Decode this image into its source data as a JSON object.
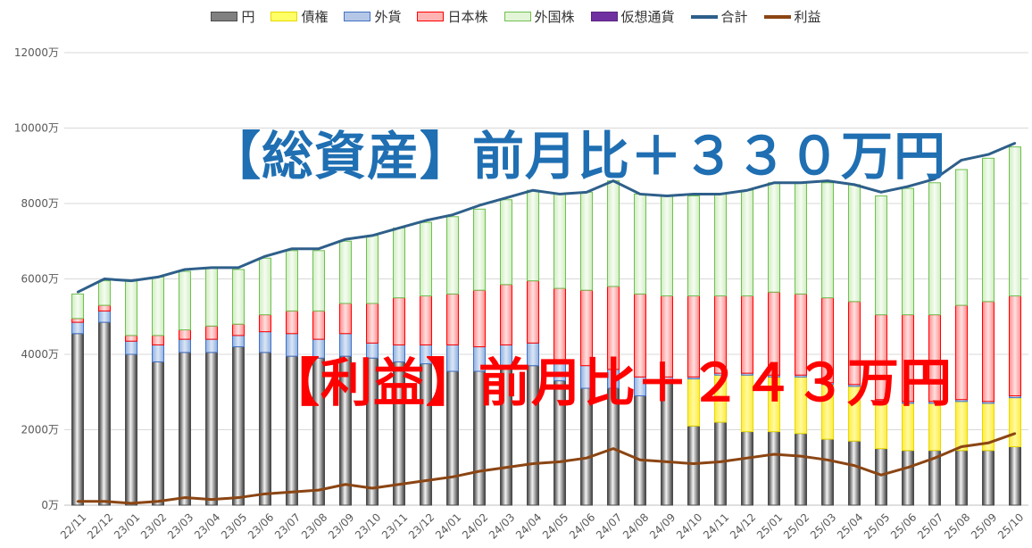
{
  "legend": [
    {
      "key": "yen",
      "label": "円",
      "color": "#808080",
      "kind": "bar"
    },
    {
      "key": "bond",
      "label": "債権",
      "color": "#ffff66",
      "kind": "bar"
    },
    {
      "key": "fx",
      "label": "外貨",
      "color": "#b4c7e7",
      "kind": "bar"
    },
    {
      "key": "jp",
      "label": "日本株",
      "color": "#ffb3b3",
      "kind": "bar"
    },
    {
      "key": "intl",
      "label": "外国株",
      "color": "#e2f5d6",
      "kind": "bar"
    },
    {
      "key": "crypto",
      "label": "仮想通貨",
      "color": "#7030a0",
      "kind": "bar"
    },
    {
      "key": "total",
      "label": "合計",
      "color": "#2e5f8a",
      "kind": "line"
    },
    {
      "key": "profit",
      "label": "利益",
      "color": "#8b4513",
      "kind": "line"
    }
  ],
  "headlines": {
    "total": "【総資産】前月比＋３３０万円",
    "profit": "【利益】前月比＋２４３万円"
  },
  "chart_data": {
    "type": "bar",
    "stacked": true,
    "ylim": [
      0,
      12000
    ],
    "yticks": [
      "0万",
      "2000万",
      "4000万",
      "6000万",
      "8000万",
      "10000万",
      "12000万"
    ],
    "categories": [
      "22/11",
      "22/12",
      "23/01",
      "23/02",
      "23/03",
      "23/04",
      "23/05",
      "23/06",
      "23/07",
      "23/08",
      "23/09",
      "23/10",
      "23/11",
      "23/12",
      "24/01",
      "24/02",
      "24/03",
      "24/04",
      "24/05",
      "24/06",
      "24/07",
      "24/08",
      "24/09",
      "24/10",
      "24/11",
      "24/12",
      "25/01",
      "25/02",
      "25/03",
      "25/04",
      "25/05",
      "25/06",
      "25/07",
      "25/08",
      "25/09",
      "25/10"
    ],
    "series": [
      {
        "name": "円",
        "key": "yen",
        "values": [
          4550,
          4850,
          4000,
          3800,
          4050,
          4050,
          4200,
          4050,
          3950,
          3900,
          3950,
          3900,
          3800,
          3750,
          3550,
          3550,
          3700,
          3700,
          3300,
          3100,
          3100,
          2900,
          3300,
          2100,
          2200,
          1950,
          1950,
          1900,
          1750,
          1700,
          1500,
          1450,
          1450,
          1450,
          1450,
          1550
        ]
      },
      {
        "name": "債権",
        "key": "bond",
        "values": [
          0,
          0,
          0,
          0,
          0,
          0,
          0,
          0,
          0,
          0,
          0,
          0,
          0,
          0,
          0,
          0,
          0,
          0,
          0,
          0,
          0,
          0,
          0,
          1250,
          1250,
          1500,
          1450,
          1500,
          1450,
          1450,
          1250,
          1250,
          1250,
          1300,
          1250,
          1300
        ]
      },
      {
        "name": "外貨",
        "key": "fx",
        "values": [
          300,
          300,
          350,
          450,
          350,
          350,
          300,
          550,
          600,
          500,
          600,
          400,
          450,
          500,
          700,
          650,
          550,
          600,
          500,
          600,
          500,
          500,
          100,
          50,
          50,
          50,
          50,
          50,
          50,
          50,
          50,
          50,
          50,
          50,
          50,
          50
        ]
      },
      {
        "name": "日本株",
        "key": "jp",
        "values": [
          100,
          150,
          150,
          250,
          250,
          350,
          300,
          450,
          600,
          750,
          800,
          1050,
          1250,
          1300,
          1350,
          1500,
          1600,
          1650,
          1950,
          2000,
          2200,
          2200,
          2150,
          2150,
          2050,
          2050,
          2200,
          2150,
          2250,
          2200,
          2250,
          2300,
          2300,
          2500,
          2650,
          2650
        ]
      },
      {
        "name": "外国株",
        "key": "intl",
        "values": [
          650,
          650,
          1450,
          1550,
          1550,
          1550,
          1450,
          1500,
          1600,
          1600,
          1650,
          1800,
          1850,
          1950,
          2050,
          2150,
          2250,
          2400,
          2500,
          2600,
          2800,
          2650,
          2650,
          2650,
          2700,
          2800,
          2900,
          2950,
          3050,
          3100,
          3150,
          3350,
          3500,
          3600,
          3800,
          3950
        ]
      },
      {
        "name": "仮想通貨",
        "key": "crypto",
        "values": [
          0,
          0,
          0,
          0,
          0,
          0,
          0,
          0,
          0,
          0,
          0,
          0,
          0,
          0,
          0,
          0,
          0,
          0,
          0,
          0,
          0,
          0,
          0,
          0,
          0,
          0,
          0,
          0,
          0,
          0,
          0,
          0,
          0,
          0,
          0,
          0
        ]
      }
    ],
    "lines": [
      {
        "name": "合計",
        "key": "total",
        "values": [
          5650,
          6000,
          5950,
          6050,
          6250,
          6300,
          6300,
          6600,
          6800,
          6800,
          7050,
          7150,
          7350,
          7550,
          7700,
          7950,
          8150,
          8350,
          8250,
          8300,
          8600,
          8250,
          8200,
          8250,
          8250,
          8350,
          8550,
          8550,
          8600,
          8500,
          8300,
          8450,
          8650,
          9150,
          9300,
          9600
        ]
      },
      {
        "name": "利益",
        "key": "profit",
        "values": [
          100,
          100,
          50,
          100,
          200,
          150,
          200,
          300,
          350,
          400,
          550,
          450,
          550,
          650,
          750,
          900,
          1000,
          1100,
          1150,
          1250,
          1500,
          1200,
          1150,
          1100,
          1150,
          1250,
          1350,
          1300,
          1200,
          1050,
          800,
          1000,
          1250,
          1550,
          1650,
          1900
        ]
      }
    ]
  }
}
